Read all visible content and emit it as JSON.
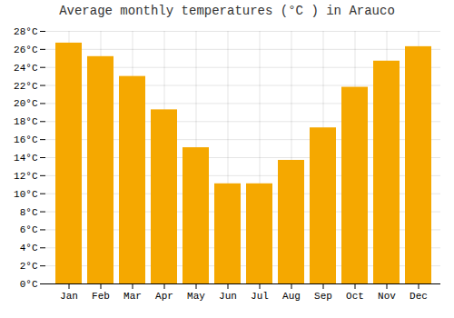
{
  "chart_data": {
    "type": "bar",
    "title": "Average monthly temperatures (°C ) in Arauco",
    "categories": [
      "Jan",
      "Feb",
      "Mar",
      "Apr",
      "May",
      "Jun",
      "Jul",
      "Aug",
      "Sep",
      "Oct",
      "Nov",
      "Dec"
    ],
    "values": [
      26.7,
      25.2,
      23.0,
      19.3,
      15.1,
      11.1,
      11.1,
      13.7,
      17.3,
      21.8,
      24.7,
      26.3
    ],
    "color": "#F5A800",
    "ylim": [
      0,
      28
    ],
    "yticks": [
      {
        "value": 0,
        "label": "0°C"
      },
      {
        "value": 2,
        "label": "2°C"
      },
      {
        "value": 4,
        "label": "4°C"
      },
      {
        "value": 6,
        "label": "6°C"
      },
      {
        "value": 8,
        "label": "8°C"
      },
      {
        "value": 10,
        "label": "10°C"
      },
      {
        "value": 12,
        "label": "12°C"
      },
      {
        "value": 14,
        "label": "14°C"
      },
      {
        "value": 16,
        "label": "16°C"
      },
      {
        "value": 18,
        "label": "18°C"
      },
      {
        "value": 20,
        "label": "20°C"
      },
      {
        "value": 22,
        "label": "22°C"
      },
      {
        "value": 24,
        "label": "24°C"
      },
      {
        "value": 26,
        "label": "26°C"
      },
      {
        "value": 28,
        "label": "28°C"
      }
    ],
    "grid": true
  }
}
